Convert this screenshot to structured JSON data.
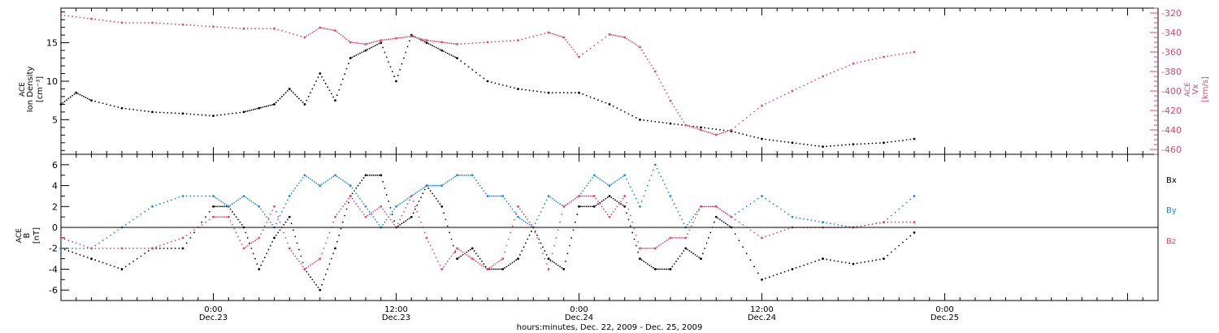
{
  "figure": {
    "time_range_label": "hours:minutes, Dec. 22, 2009 - Dec. 25, 2009"
  },
  "colors": {
    "density": "#000000",
    "vx": "#e8436a",
    "bx": "#000000",
    "by": "#1e88e5",
    "bz": "#e8436a"
  },
  "chart_data": [
    {
      "type": "scatter",
      "panel": "top",
      "ylabel_left": [
        "ACE",
        "Ion Density",
        "[cm⁻³]"
      ],
      "ylabel_right": [
        "ACE",
        "Vx",
        "[km/s]"
      ],
      "ylim_left": [
        0.5,
        19.5
      ],
      "ylim_right": [
        -465,
        -315
      ],
      "left_ticks": [
        "5",
        "10",
        "15"
      ],
      "right_ticks": [
        "-320",
        "-340",
        "-360",
        "-380",
        "-400",
        "-420",
        "-440",
        "-460"
      ],
      "x_range_hours": [
        -10,
        62
      ],
      "series": [
        {
          "key": "density",
          "axis": "left",
          "t": [
            -10,
            -9,
            -8,
            -6,
            -4,
            -2,
            0,
            2,
            3,
            4,
            5,
            6,
            7,
            8,
            9,
            10,
            11,
            12,
            13,
            14,
            15,
            16,
            18,
            20,
            22,
            24,
            26,
            28,
            30,
            32,
            34,
            36,
            38,
            40,
            42,
            44,
            46
          ],
          "values": [
            7,
            8.5,
            7.5,
            6.5,
            6,
            5.8,
            5.5,
            6,
            6.5,
            7,
            9,
            7,
            11,
            7.5,
            13,
            14,
            15,
            10,
            16,
            15,
            14,
            13,
            10,
            9,
            8.5,
            8.5,
            7,
            5,
            4.5,
            4,
            3.5,
            2.5,
            2,
            1.5,
            1.8,
            2,
            2.5
          ]
        },
        {
          "key": "vx",
          "axis": "right",
          "t": [
            -10,
            -8,
            -6,
            -4,
            -2,
            0,
            2,
            4,
            6,
            7,
            8,
            9,
            10,
            11,
            12,
            13,
            14,
            15,
            16,
            18,
            20,
            22,
            23,
            24,
            26,
            27,
            28,
            29,
            30,
            31,
            32,
            33,
            34,
            36,
            38,
            40,
            42,
            44,
            46
          ],
          "values": [
            -322,
            -326,
            -330,
            -330,
            -332,
            -334,
            -336,
            -336,
            -345,
            -335,
            -338,
            -350,
            -352,
            -348,
            -346,
            -344,
            -348,
            -350,
            -352,
            -350,
            -348,
            -340,
            -345,
            -365,
            -342,
            -345,
            -355,
            -380,
            -410,
            -435,
            -440,
            -445,
            -440,
            -415,
            -400,
            -385,
            -372,
            -365,
            -360
          ]
        }
      ]
    },
    {
      "type": "scatter",
      "panel": "bottom",
      "ylabel_left": [
        "ACE",
        "B",
        "[nT]"
      ],
      "ylim": [
        -7,
        7
      ],
      "left_ticks": [
        "-6",
        "-4",
        "-2",
        "0",
        "2",
        "4",
        "6"
      ],
      "x_range_hours": [
        -10,
        62
      ],
      "legend": [
        "Bx",
        "By",
        "Bz"
      ],
      "series": [
        {
          "key": "bx",
          "t": [
            -10,
            -8,
            -6,
            -4,
            -2,
            0,
            1,
            2,
            3,
            4,
            5,
            6,
            7,
            8,
            9,
            10,
            11,
            12,
            13,
            14,
            15,
            16,
            17,
            18,
            19,
            20,
            21,
            22,
            23,
            24,
            25,
            26,
            27,
            28,
            29,
            30,
            31,
            32,
            33,
            34,
            36,
            38,
            40,
            42,
            44,
            46
          ],
          "values": [
            -2,
            -3,
            -4,
            -2,
            -2,
            2,
            2,
            0,
            -4,
            -1,
            1,
            -4,
            -6,
            -2,
            3,
            5,
            5,
            0,
            1,
            4,
            2,
            -3,
            -2,
            -4,
            -4,
            -3,
            0,
            -3,
            -4,
            2,
            2,
            3,
            2,
            -3,
            -4,
            -4,
            -2,
            -3,
            1,
            0,
            -5,
            -4,
            -3,
            -3.5,
            -3,
            -0.5
          ]
        },
        {
          "key": "by",
          "t": [
            -10,
            -8,
            -6,
            -4,
            -2,
            0,
            1,
            2,
            3,
            4,
            5,
            6,
            7,
            8,
            9,
            10,
            11,
            12,
            13,
            14,
            15,
            16,
            17,
            18,
            19,
            20,
            21,
            22,
            23,
            24,
            25,
            26,
            27,
            28,
            29,
            30,
            31,
            32,
            33,
            34,
            36,
            38,
            40,
            42,
            44,
            46
          ],
          "values": [
            -2,
            -2,
            0,
            2,
            3,
            3,
            2,
            3,
            2,
            0,
            3,
            5,
            4,
            5,
            4,
            2,
            0,
            2,
            3,
            4,
            4,
            5,
            5,
            3,
            3,
            1,
            0,
            3,
            2,
            3,
            5,
            4,
            5,
            2,
            6,
            3,
            0,
            2,
            2,
            1,
            3,
            1,
            0.5,
            0,
            0.5,
            3
          ]
        },
        {
          "key": "bz",
          "t": [
            -10,
            -8,
            -6,
            -4,
            -2,
            0,
            1,
            2,
            3,
            4,
            5,
            6,
            7,
            8,
            9,
            10,
            11,
            12,
            13,
            14,
            15,
            16,
            17,
            18,
            19,
            20,
            21,
            22,
            23,
            24,
            25,
            26,
            27,
            28,
            29,
            30,
            31,
            32,
            33,
            34,
            36,
            38,
            40,
            42,
            44,
            46
          ],
          "values": [
            -1,
            -2,
            -2,
            -2,
            -1,
            1,
            1,
            -2,
            -1,
            2,
            -2,
            -4,
            -3,
            1,
            3,
            1,
            2,
            0,
            3,
            -1,
            -4,
            -2,
            -3,
            -4,
            -3,
            2,
            0,
            -4,
            2,
            3,
            3,
            1,
            3,
            -2,
            -2,
            -1,
            -1,
            2,
            2,
            1,
            -1,
            0,
            0,
            0,
            0.5,
            0.5
          ]
        }
      ]
    }
  ],
  "x_axis": {
    "ticks": [
      {
        "time": "0:00",
        "date": "Dec.23"
      },
      {
        "time": "12:00",
        "date": "Dec.23"
      },
      {
        "time": "0:00",
        "date": "Dec.24"
      },
      {
        "time": "12:00",
        "date": "Dec.24"
      },
      {
        "time": "0:00",
        "date": "Dec.25"
      }
    ],
    "tick_hours": [
      0,
      12,
      24,
      36,
      48
    ]
  }
}
